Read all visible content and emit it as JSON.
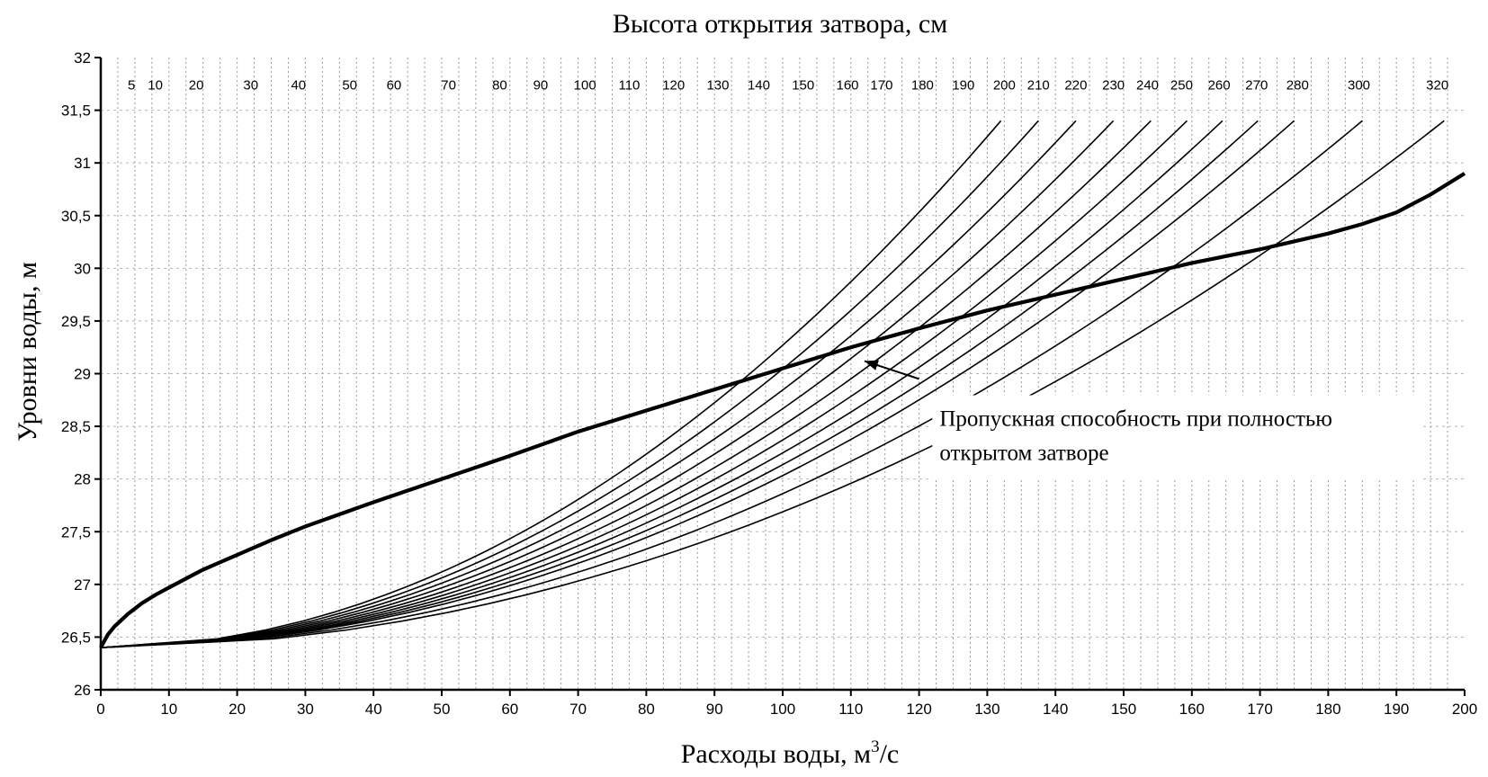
{
  "chart_data": {
    "type": "line",
    "title": "Высота открытия затвора, см",
    "xlabel": "Расходы воды, м",
    "xlabel_unit_sup": "3",
    "xlabel_unit_tail": "/с",
    "ylabel": "Уровни воды, м",
    "xlim": [
      0,
      200
    ],
    "ylim": [
      26,
      32
    ],
    "xticks": [
      "0",
      "10",
      "20",
      "30",
      "40",
      "50",
      "60",
      "70",
      "80",
      "90",
      "100",
      "110",
      "120",
      "130",
      "140",
      "150",
      "160",
      "170",
      "180",
      "190",
      "200"
    ],
    "yticks": [
      "26",
      "26,5",
      "27",
      "27,5",
      "28",
      "28,5",
      "29",
      "29,5",
      "30",
      "30,5",
      "31",
      "31,5",
      "32"
    ],
    "grid": "dashed vertical and horizontal",
    "gate_openings_cm": [
      {
        "label": "5",
        "q_top": 3.5
      },
      {
        "label": "10",
        "q_top": 7.5
      },
      {
        "label": "20",
        "q_top": 14.5
      },
      {
        "label": "30",
        "q_top": 21.8
      },
      {
        "label": "40",
        "q_top": 29
      },
      {
        "label": "50",
        "q_top": 36.3
      },
      {
        "label": "60",
        "q_top": 43.3
      },
      {
        "label": "70",
        "q_top": 50.2
      },
      {
        "label": "80",
        "q_top": 57
      },
      {
        "label": "90",
        "q_top": 63.5
      },
      {
        "label": "100",
        "q_top": 70
      },
      {
        "label": "110",
        "q_top": 76.5
      },
      {
        "label": "120",
        "q_top": 83
      },
      {
        "label": "130",
        "q_top": 89.5
      },
      {
        "label": "140",
        "q_top": 96
      },
      {
        "label": "150",
        "q_top": 102.3
      },
      {
        "label": "160",
        "q_top": 108.5
      },
      {
        "label": "170",
        "q_top": 114.5
      },
      {
        "label": "180",
        "q_top": 120.5
      },
      {
        "label": "190",
        "q_top": 126.3
      },
      {
        "label": "200",
        "q_top": 132
      },
      {
        "label": "210",
        "q_top": 137.5
      },
      {
        "label": "220",
        "q_top": 143
      },
      {
        "label": "230",
        "q_top": 148.5
      },
      {
        "label": "240",
        "q_top": 154
      },
      {
        "label": "250",
        "q_top": 159.3
      },
      {
        "label": "260",
        "q_top": 164.5
      },
      {
        "label": "270",
        "q_top": 169.7
      },
      {
        "label": "280",
        "q_top": 175
      },
      {
        "label": "300",
        "q_top": 185
      },
      {
        "label": "320",
        "q_top": 197
      }
    ],
    "gate_curve_top_level": 31.4,
    "gate_label_q": [
      4.5,
      8,
      14,
      22,
      29,
      36.5,
      43,
      51,
      58.5,
      64.5,
      71,
      77.5,
      84,
      90.5,
      96.5,
      103,
      109.5,
      114.5,
      120.5,
      126.5,
      132.5,
      137.5,
      143,
      148.5,
      153.5,
      158.5,
      164,
      169.5,
      175.5,
      184.5,
      196
    ],
    "gate_label_level": 31.75,
    "full_open_curve": {
      "x": [
        0,
        1,
        2,
        4,
        6,
        8,
        10,
        15,
        20,
        25,
        30,
        40,
        50,
        60,
        70,
        80,
        90,
        100,
        110,
        120,
        130,
        140,
        150,
        160,
        170,
        180,
        185,
        190,
        195,
        200
      ],
      "y": [
        26.4,
        26.52,
        26.6,
        26.72,
        26.82,
        26.9,
        26.97,
        27.14,
        27.28,
        27.42,
        27.55,
        27.78,
        28.0,
        28.22,
        28.45,
        28.65,
        28.85,
        29.05,
        29.25,
        29.43,
        29.6,
        29.75,
        29.9,
        30.05,
        30.18,
        30.33,
        30.42,
        30.53,
        30.7,
        30.9
      ]
    },
    "annotation": {
      "lines": [
        "Пропускная способность при полностью",
        "открытом затворе"
      ],
      "arrow_from": [
        120,
        28.95
      ],
      "arrow_to": [
        112,
        29.12
      ],
      "text_pos": [
        123,
        28.42
      ]
    }
  }
}
